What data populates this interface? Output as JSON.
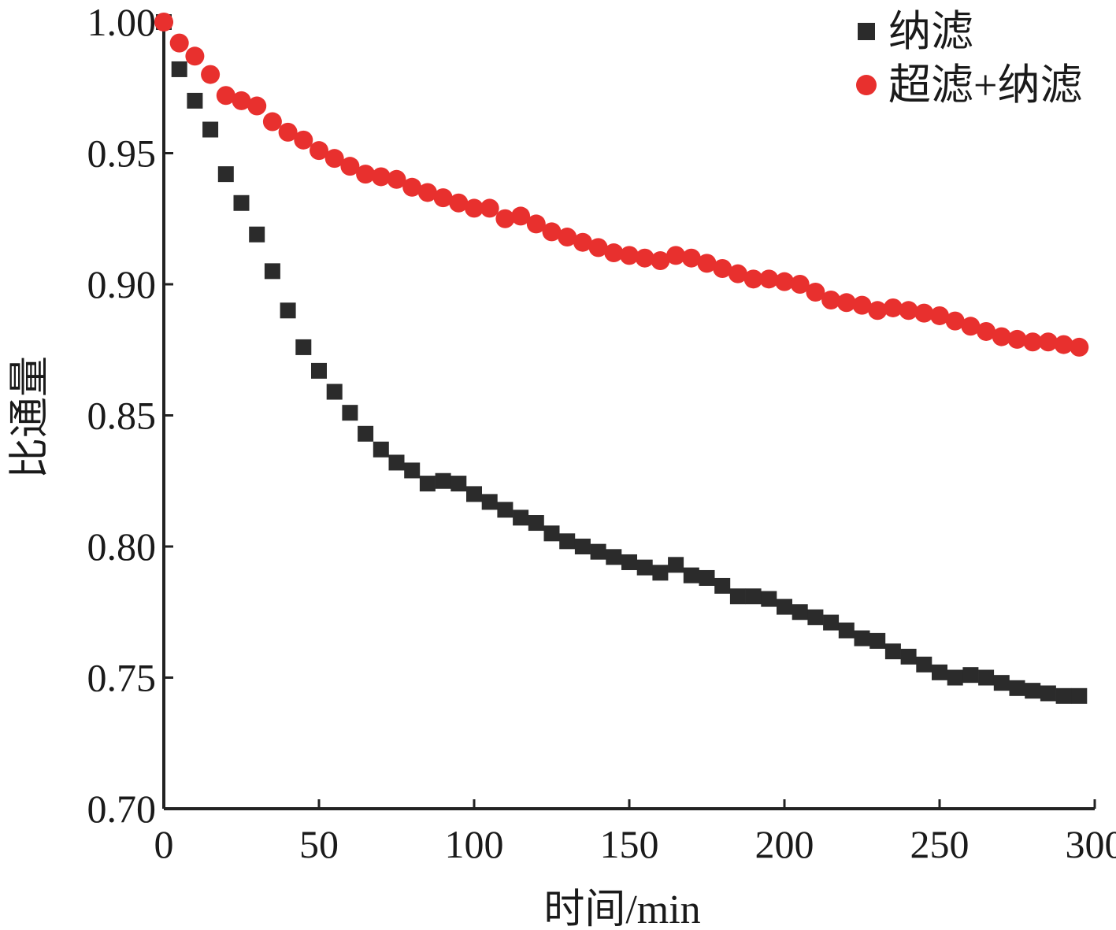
{
  "chart_data": {
    "type": "scatter",
    "xlabel": "时间/min",
    "ylabel": "比通量",
    "xlim": [
      0,
      300
    ],
    "ylim": [
      0.7,
      1.0
    ],
    "x_ticks": [
      0,
      50,
      100,
      150,
      200,
      250,
      300
    ],
    "x_tick_labels": [
      "0",
      "50",
      "100",
      "150",
      "200",
      "250",
      "300"
    ],
    "y_ticks": [
      0.7,
      0.75,
      0.8,
      0.85,
      0.9,
      0.95,
      1.0
    ],
    "y_tick_labels": [
      "0.70",
      "0.75",
      "0.80",
      "0.85",
      "0.90",
      "0.95",
      "1.00"
    ],
    "grid": false,
    "legend_position": "top-right",
    "series": [
      {
        "name": "纳滤",
        "marker": "square",
        "color": "#2b2b2b",
        "x": [
          0,
          5,
          10,
          15,
          20,
          25,
          30,
          35,
          40,
          45,
          50,
          55,
          60,
          65,
          70,
          75,
          80,
          85,
          90,
          95,
          100,
          105,
          110,
          115,
          120,
          125,
          130,
          135,
          140,
          145,
          150,
          155,
          160,
          165,
          170,
          175,
          180,
          185,
          190,
          195,
          200,
          205,
          210,
          215,
          220,
          225,
          230,
          235,
          240,
          245,
          250,
          255,
          260,
          265,
          270,
          275,
          280,
          285,
          290,
          295
        ],
        "y": [
          1.0,
          0.982,
          0.97,
          0.959,
          0.942,
          0.931,
          0.919,
          0.905,
          0.89,
          0.876,
          0.867,
          0.859,
          0.851,
          0.843,
          0.837,
          0.832,
          0.829,
          0.824,
          0.825,
          0.824,
          0.82,
          0.817,
          0.814,
          0.811,
          0.809,
          0.805,
          0.802,
          0.8,
          0.798,
          0.796,
          0.794,
          0.792,
          0.79,
          0.793,
          0.789,
          0.788,
          0.785,
          0.781,
          0.781,
          0.78,
          0.777,
          0.775,
          0.773,
          0.771,
          0.768,
          0.765,
          0.764,
          0.76,
          0.758,
          0.755,
          0.752,
          0.75,
          0.751,
          0.75,
          0.748,
          0.746,
          0.745,
          0.744,
          0.743,
          0.743
        ]
      },
      {
        "name": "超滤+纳滤",
        "marker": "circle",
        "color": "#e8302e",
        "x": [
          0,
          5,
          10,
          15,
          20,
          25,
          30,
          35,
          40,
          45,
          50,
          55,
          60,
          65,
          70,
          75,
          80,
          85,
          90,
          95,
          100,
          105,
          110,
          115,
          120,
          125,
          130,
          135,
          140,
          145,
          150,
          155,
          160,
          165,
          170,
          175,
          180,
          185,
          190,
          195,
          200,
          205,
          210,
          215,
          220,
          225,
          230,
          235,
          240,
          245,
          250,
          255,
          260,
          265,
          270,
          275,
          280,
          285,
          290,
          295
        ],
        "y": [
          1.0,
          0.992,
          0.987,
          0.98,
          0.972,
          0.97,
          0.968,
          0.962,
          0.958,
          0.955,
          0.951,
          0.948,
          0.945,
          0.942,
          0.941,
          0.94,
          0.937,
          0.935,
          0.933,
          0.931,
          0.929,
          0.929,
          0.925,
          0.926,
          0.923,
          0.92,
          0.918,
          0.916,
          0.914,
          0.912,
          0.911,
          0.91,
          0.909,
          0.911,
          0.91,
          0.908,
          0.906,
          0.904,
          0.902,
          0.902,
          0.901,
          0.9,
          0.897,
          0.894,
          0.893,
          0.892,
          0.89,
          0.891,
          0.89,
          0.889,
          0.888,
          0.886,
          0.884,
          0.882,
          0.88,
          0.879,
          0.878,
          0.878,
          0.877,
          0.876
        ]
      }
    ]
  }
}
